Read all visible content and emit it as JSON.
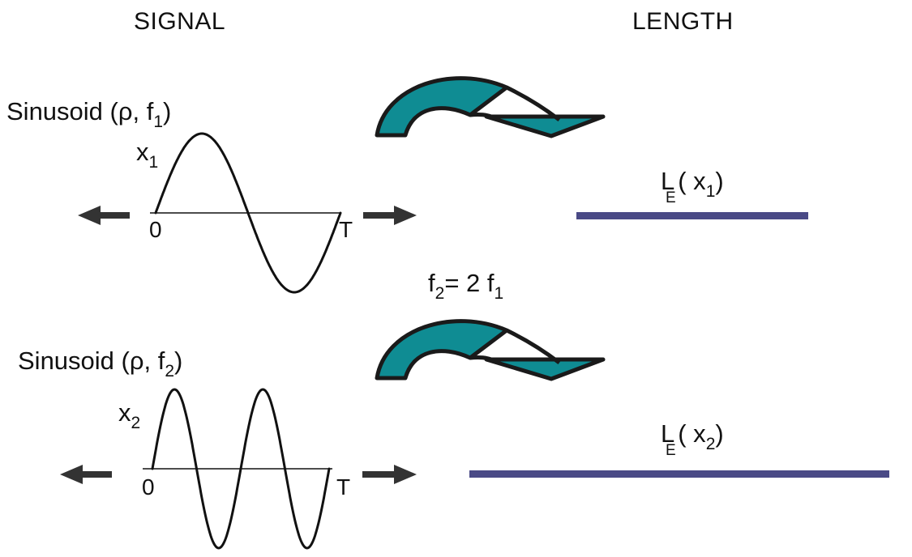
{
  "headers": {
    "signal": "SIGNAL",
    "length": "LENGTH"
  },
  "rows": [
    {
      "title_prefix": "Sinusoid (",
      "rho": "ρ",
      "comma": ", f",
      "freq_sub": "1",
      "close": ")",
      "var_main": "x",
      "var_sub": "1",
      "origin": "0",
      "period": "T",
      "length_L": "L",
      "length_E": "E",
      "length_arg": "( x",
      "length_arg_sub": "1",
      "length_close": ")",
      "cycles": 1,
      "relative_length": 1
    },
    {
      "title_prefix": "Sinusoid (",
      "rho": "ρ",
      "comma": ", f",
      "freq_sub": "2",
      "close": ")",
      "var_main": "x",
      "var_sub": "2",
      "origin": "0",
      "period": "T",
      "length_L": "L",
      "length_E": "E",
      "length_arg": "( x",
      "length_arg_sub": "2",
      "length_close": ")",
      "cycles": 2,
      "relative_length": 2
    }
  ],
  "relation": {
    "f2_main": "f",
    "f2_sub": "2",
    "eq": "= 2 f",
    "f1_sub": "1"
  },
  "colors": {
    "arrow_fill": "#0f8c93",
    "arrow_outline": "#1a1a1a",
    "length_bar": "#4a4a86",
    "axis_arrow": "#333333",
    "curve": "#111111"
  }
}
